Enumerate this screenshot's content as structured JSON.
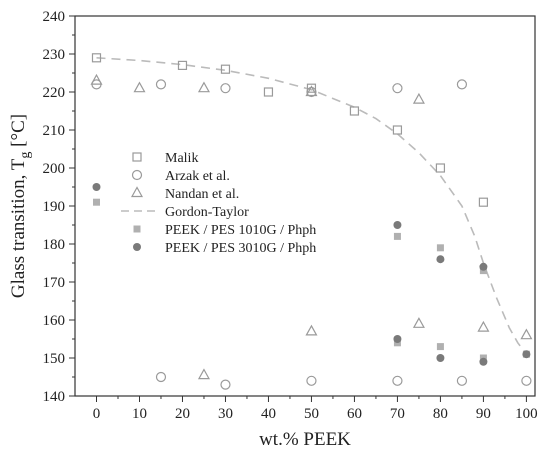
{
  "chart_data": {
    "type": "scatter",
    "xlabel": "wt.% PEEK",
    "ylabel": "Glass transition, T",
    "ylabel_sub": "g",
    "ylabel_unit": " [°C]",
    "xlim": [
      -5,
      102
    ],
    "ylim": [
      140,
      240
    ],
    "xticks": [
      0,
      10,
      20,
      30,
      40,
      50,
      60,
      70,
      80,
      90,
      100
    ],
    "yticks": [
      140,
      150,
      160,
      170,
      180,
      190,
      200,
      210,
      220,
      230,
      240
    ],
    "grid": false,
    "legend_position": "center-left",
    "series": [
      {
        "name": "Malik",
        "marker": "open-square",
        "color": "#9a9a9a",
        "points": [
          [
            0,
            229
          ],
          [
            20,
            227
          ],
          [
            30,
            226
          ],
          [
            40,
            220
          ],
          [
            50,
            221
          ],
          [
            60,
            215
          ],
          [
            70,
            210
          ],
          [
            80,
            200
          ],
          [
            90,
            191
          ]
        ]
      },
      {
        "name": "Arzak et al.",
        "marker": "open-circle",
        "color": "#9a9a9a",
        "points": [
          [
            0,
            222
          ],
          [
            15,
            222
          ],
          [
            30,
            221
          ],
          [
            50,
            220
          ],
          [
            70,
            221
          ],
          [
            85,
            222
          ],
          [
            15,
            145
          ],
          [
            30,
            143
          ],
          [
            50,
            144
          ],
          [
            70,
            144
          ],
          [
            85,
            144
          ],
          [
            100,
            144
          ]
        ]
      },
      {
        "name": "Nandan et al.",
        "marker": "open-triangle",
        "color": "#9a9a9a",
        "points": [
          [
            0,
            223
          ],
          [
            10,
            221
          ],
          [
            25,
            221
          ],
          [
            50,
            220
          ],
          [
            75,
            218
          ],
          [
            25,
            145.5
          ],
          [
            50,
            157
          ],
          [
            75,
            159
          ],
          [
            90,
            158
          ],
          [
            100,
            156
          ]
        ]
      },
      {
        "name": "Gordon-Taylor",
        "marker": "dashed-line",
        "color": "#bbbbbb",
        "points": [
          [
            0,
            229
          ],
          [
            10,
            228.3
          ],
          [
            20,
            227.2
          ],
          [
            30,
            225.7
          ],
          [
            40,
            223.6
          ],
          [
            50,
            220.6
          ],
          [
            60,
            216
          ],
          [
            65,
            213
          ],
          [
            70,
            209
          ],
          [
            75,
            204
          ],
          [
            80,
            198
          ],
          [
            85,
            190
          ],
          [
            88,
            182
          ],
          [
            90,
            175
          ],
          [
            93,
            166
          ],
          [
            96,
            158
          ],
          [
            98,
            154
          ],
          [
            100,
            151
          ]
        ]
      },
      {
        "name": "PEEK / PES 1010G / Phph",
        "marker": "filled-square",
        "color": "#b0b0b0",
        "points": [
          [
            0,
            191
          ],
          [
            70,
            182
          ],
          [
            80,
            179
          ],
          [
            90,
            173
          ],
          [
            70,
            154
          ],
          [
            80,
            153
          ],
          [
            90,
            150
          ],
          [
            100,
            151
          ]
        ]
      },
      {
        "name": "PEEK / PES 3010G / Phph",
        "marker": "filled-circle",
        "color": "#7a7a7a",
        "points": [
          [
            0,
            195
          ],
          [
            70,
            185
          ],
          [
            80,
            176
          ],
          [
            90,
            174
          ],
          [
            70,
            155
          ],
          [
            80,
            150
          ],
          [
            90,
            149
          ],
          [
            100,
            151
          ]
        ]
      }
    ]
  }
}
